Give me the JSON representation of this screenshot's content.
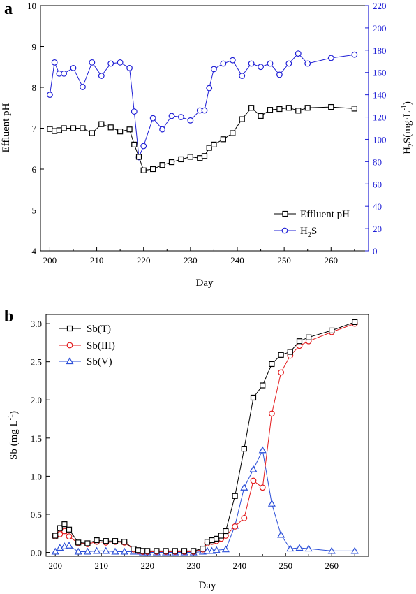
{
  "chart_data": [
    {
      "panel": "a",
      "type": "line",
      "xlabel": "Day",
      "xlim": [
        198,
        268
      ],
      "xticks": [
        200,
        210,
        220,
        230,
        240,
        250,
        260
      ],
      "ylabel_left": "Effluent pH",
      "ylim_left": [
        4,
        10
      ],
      "yticks_left": [
        4,
        5,
        6,
        7,
        8,
        9,
        10
      ],
      "ylabel_right": "H2S(mg·L-1)",
      "ylim_right": [
        0,
        220
      ],
      "yticks_right": [
        0,
        20,
        40,
        60,
        80,
        100,
        120,
        140,
        160,
        180,
        200,
        220
      ],
      "legend_position": "bottom-right",
      "series": [
        {
          "name": "Effluent pH",
          "axis": "left",
          "color": "#000000",
          "marker": "square",
          "x": [
            200,
            201,
            202,
            203,
            205,
            207,
            209,
            211,
            213,
            215,
            217,
            218,
            219,
            220,
            222,
            224,
            226,
            228,
            230,
            232,
            233,
            234,
            235,
            237,
            239,
            241,
            243,
            245,
            247,
            249,
            251,
            253,
            255,
            260,
            265
          ],
          "y": [
            6.98,
            6.93,
            6.95,
            7.0,
            7.0,
            7.0,
            6.88,
            7.1,
            7.02,
            6.92,
            6.97,
            6.6,
            6.3,
            5.97,
            6.0,
            6.1,
            6.17,
            6.24,
            6.3,
            6.27,
            6.32,
            6.52,
            6.6,
            6.73,
            6.88,
            7.22,
            7.5,
            7.3,
            7.45,
            7.47,
            7.5,
            7.43,
            7.5,
            7.52,
            7.48
          ]
        },
        {
          "name": "H2S",
          "axis": "right",
          "color": "#1f1fd6",
          "marker": "circle",
          "x": [
            200,
            201,
            202,
            203,
            205,
            207,
            209,
            211,
            213,
            215,
            217,
            218,
            219,
            220,
            222,
            224,
            226,
            228,
            230,
            232,
            233,
            234,
            235,
            237,
            239,
            241,
            243,
            245,
            247,
            249,
            251,
            253,
            255,
            260,
            265
          ],
          "y": [
            140,
            169,
            159,
            159,
            164,
            147,
            169,
            157,
            168,
            169,
            164,
            125,
            84,
            94,
            119,
            109,
            121,
            120,
            117,
            126,
            126,
            146,
            163,
            168,
            171,
            157,
            168,
            165,
            168,
            158,
            168,
            177,
            168,
            173,
            176
          ]
        }
      ]
    },
    {
      "panel": "b",
      "type": "line",
      "xlabel": "Day",
      "xlim": [
        198,
        268
      ],
      "xticks": [
        200,
        210,
        220,
        230,
        240,
        250,
        260
      ],
      "ylabel": "Sb (mg L-1)",
      "ylim": [
        -0.05,
        3.12
      ],
      "yticks": [
        0.0,
        0.5,
        1.0,
        1.5,
        2.0,
        2.5,
        3.0
      ],
      "legend_position": "top-left",
      "series": [
        {
          "name": "Sb(T)",
          "color": "#000000",
          "marker": "square",
          "x": [
            200,
            201,
            202,
            203,
            205,
            207,
            209,
            211,
            213,
            215,
            217,
            218,
            219,
            220,
            222,
            224,
            226,
            228,
            230,
            232,
            233,
            234,
            235,
            236,
            237,
            239,
            241,
            243,
            245,
            247,
            249,
            251,
            253,
            255,
            260,
            265
          ],
          "y": [
            0.22,
            0.32,
            0.37,
            0.3,
            0.13,
            0.12,
            0.16,
            0.15,
            0.15,
            0.14,
            0.05,
            0.03,
            0.02,
            0.02,
            0.02,
            0.02,
            0.02,
            0.02,
            0.02,
            0.05,
            0.14,
            0.16,
            0.18,
            0.22,
            0.28,
            0.74,
            1.36,
            2.03,
            2.19,
            2.47,
            2.59,
            2.63,
            2.77,
            2.82,
            2.91,
            3.02
          ]
        },
        {
          "name": "Sb(III)",
          "color": "#e31a1c",
          "marker": "circle",
          "x": [
            200,
            201,
            202,
            203,
            205,
            207,
            209,
            211,
            213,
            215,
            217,
            218,
            219,
            220,
            222,
            224,
            226,
            228,
            230,
            232,
            233,
            234,
            235,
            236,
            237,
            239,
            241,
            243,
            245,
            247,
            249,
            251,
            253,
            255,
            260,
            265
          ],
          "y": [
            0.21,
            0.24,
            0.28,
            0.21,
            0.12,
            0.11,
            0.14,
            0.13,
            0.14,
            0.13,
            0.04,
            0.02,
            0.01,
            0.01,
            0.01,
            0.01,
            0.01,
            0.01,
            0.01,
            0.04,
            0.12,
            0.14,
            0.15,
            0.18,
            0.22,
            0.34,
            0.45,
            0.94,
            0.85,
            1.82,
            2.36,
            2.58,
            2.71,
            2.77,
            2.89,
            3.0
          ]
        },
        {
          "name": "Sb(V)",
          "color": "#2b4fd8",
          "marker": "triangle",
          "x": [
            200,
            201,
            202,
            203,
            205,
            207,
            209,
            211,
            213,
            215,
            217,
            218,
            219,
            220,
            222,
            224,
            226,
            228,
            230,
            232,
            233,
            234,
            235,
            237,
            239,
            241,
            243,
            245,
            247,
            249,
            251,
            253,
            255,
            260,
            265
          ],
          "y": [
            0.01,
            0.06,
            0.08,
            0.09,
            0.01,
            0.01,
            0.02,
            0.02,
            0.01,
            0.01,
            0.01,
            0.01,
            0.0,
            0.0,
            0.0,
            0.0,
            0.0,
            0.0,
            0.0,
            0.01,
            0.02,
            0.02,
            0.03,
            0.04,
            0.35,
            0.85,
            1.09,
            1.34,
            0.64,
            0.23,
            0.05,
            0.06,
            0.05,
            0.02,
            0.02
          ]
        }
      ]
    }
  ],
  "labels": {
    "panel_a_letter": "a",
    "panel_b_letter": "b",
    "a_xlabel": "Day",
    "a_ylabel_left": "Effluent pH",
    "a_ylabel_right_main": "H",
    "a_ylabel_right_sub": "2",
    "a_ylabel_right_rest": "S(mg·L",
    "a_ylabel_right_sup": "-1",
    "a_ylabel_right_close": ")",
    "a_legend_ph": "Effluent pH",
    "a_legend_h2s_main": "H",
    "a_legend_h2s_sub": "2",
    "a_legend_h2s_rest": "S",
    "b_xlabel": "Day",
    "b_ylabel_main": "Sb (mg L",
    "b_ylabel_sup": "-1",
    "b_ylabel_close": ")",
    "b_legend_t": "Sb(T)",
    "b_legend_iii": "Sb(III)",
    "b_legend_v": "Sb(V)"
  }
}
